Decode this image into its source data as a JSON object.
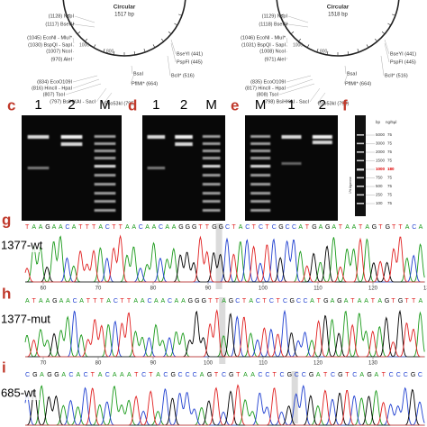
{
  "map_left": {
    "title": "Circular",
    "size": "1517 bp",
    "ticks": [
      "1000",
      "800"
    ],
    "labels": [
      "(1128) NspI",
      "(1117) BseRI",
      "(1045) EcoNI - MluI*",
      "(1030) BspQI - SapI",
      "(1007) NcoI",
      "(970) AleI",
      "(834) EcoO109I",
      "(816) HincII - HpaI",
      "(807) TsoI",
      "(797) BsiHKAI - SacI",
      "BseYI (441)",
      "PspFI (445)",
      "BclI* (516)",
      "BsaI",
      "PflMI* (664)",
      "Eco53kI (795)"
    ]
  },
  "map_right": {
    "title": "Circular",
    "size": "1518 bp",
    "ticks": [
      "1000",
      "800"
    ],
    "labels": [
      "(1129) NspI",
      "(1118) BseRI",
      "(1046) EcoNI - MluI*",
      "(1031) BspQI - SapI",
      "(1008) NcoI",
      "(971) AleI",
      "(835) EcoO109I",
      "(817) HincII - HpaI",
      "(808) TsoI",
      "(798) BsiHKAI - SacI",
      "BseYI (441)",
      "PspFI (445)",
      "BclI* (516)",
      "BsaI",
      "PflMI* (664)",
      "Eco53kI (796)"
    ]
  },
  "gels": [
    {
      "letter": "c",
      "lanes": [
        "1",
        "2",
        "M"
      ]
    },
    {
      "letter": "d",
      "lanes": [
        "1",
        "2",
        "M"
      ]
    },
    {
      "letter": "e",
      "lanes": [
        "M",
        "1",
        "2"
      ]
    }
  ],
  "ladder": {
    "letter": "f",
    "header": [
      "bp",
      "ng/5µl"
    ],
    "rows": [
      [
        "5000",
        "75"
      ],
      [
        "3000",
        "75"
      ],
      [
        "2000",
        "75"
      ],
      [
        "1500",
        "75"
      ],
      [
        "1000",
        "180"
      ],
      [
        "750",
        "75"
      ],
      [
        "500",
        "75"
      ],
      [
        "250",
        "75"
      ],
      [
        "100",
        "75"
      ]
    ],
    "note": "1% Agarose"
  },
  "traces": [
    {
      "letter": "g",
      "name": "1377-wt",
      "sequence": "TAAGAACATTTACTTAACAACAAGGGTTGGCTACTCTCGCCATGAGATAATAGTGTTACA",
      "positions": [
        "60",
        "70",
        "80",
        "90",
        "100",
        "110",
        "120",
        "130"
      ]
    },
    {
      "letter": "h",
      "name": "1377-mut",
      "sequence": "ATAAGAACATTTACTTAACAACAAGGGTTAGCTACTCTCGCCATGAGATAATAGTGTTA",
      "positions": [
        "70",
        "80",
        "90",
        "100",
        "110",
        "120",
        "130"
      ]
    },
    {
      "letter": "i",
      "name": "685-wt",
      "sequence": "CGAGGACACTACAAATCTACGCCCAGTCGTAACCTCGCCGATCGTCAGATCCCGC",
      "positions": []
    }
  ]
}
